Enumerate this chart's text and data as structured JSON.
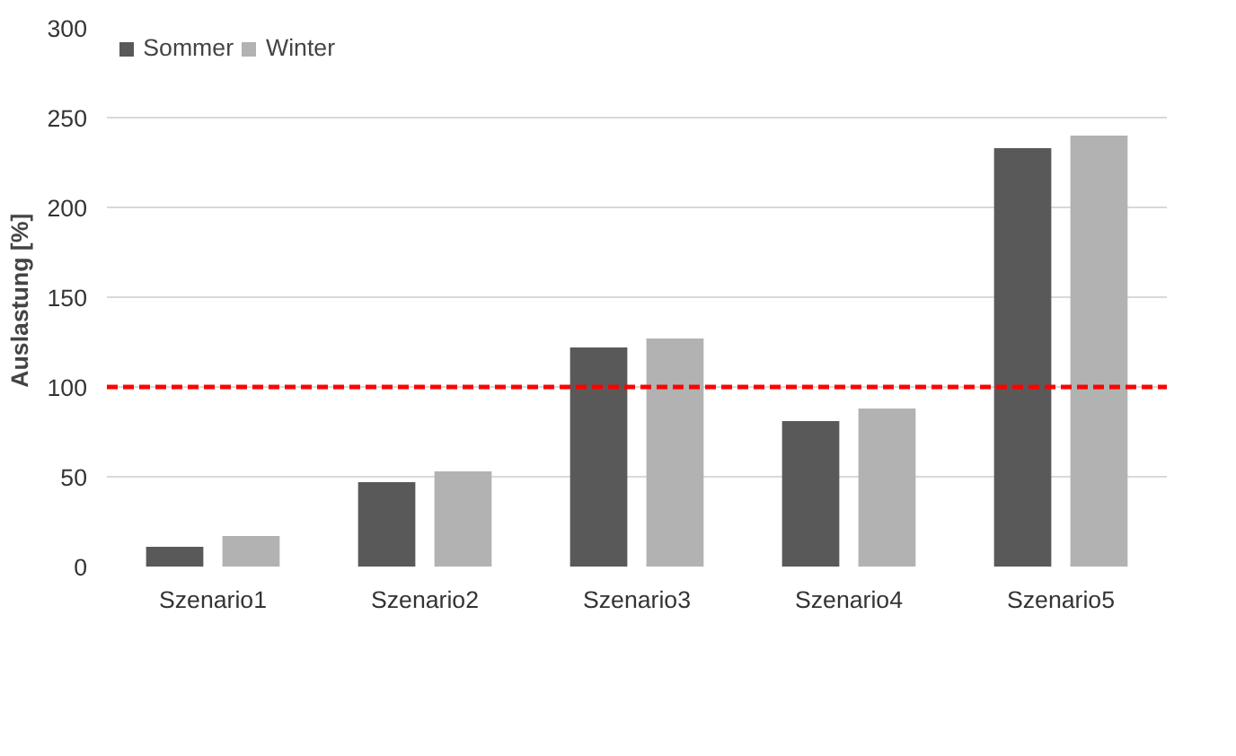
{
  "chart_data": {
    "type": "bar",
    "ylabel": "Auslastung  [%]",
    "categories": [
      "Szenario1",
      "Szenario2",
      "Szenario3",
      "Szenario4",
      "Szenario5"
    ],
    "series": [
      {
        "name": "Sommer",
        "color": "#595959",
        "values": [
          11,
          47,
          122,
          81,
          233
        ]
      },
      {
        "name": "Winter",
        "color": "#b2b2b2",
        "values": [
          17,
          53,
          127,
          88,
          240
        ]
      }
    ],
    "ylim": [
      0,
      300
    ],
    "yticks": [
      0,
      50,
      100,
      150,
      200,
      250,
      300
    ],
    "grid": "y",
    "legend": "top left",
    "ref_lines": [
      {
        "axis": "y",
        "value": 100,
        "color": "#ff0000",
        "line_style": "dashed"
      }
    ]
  }
}
